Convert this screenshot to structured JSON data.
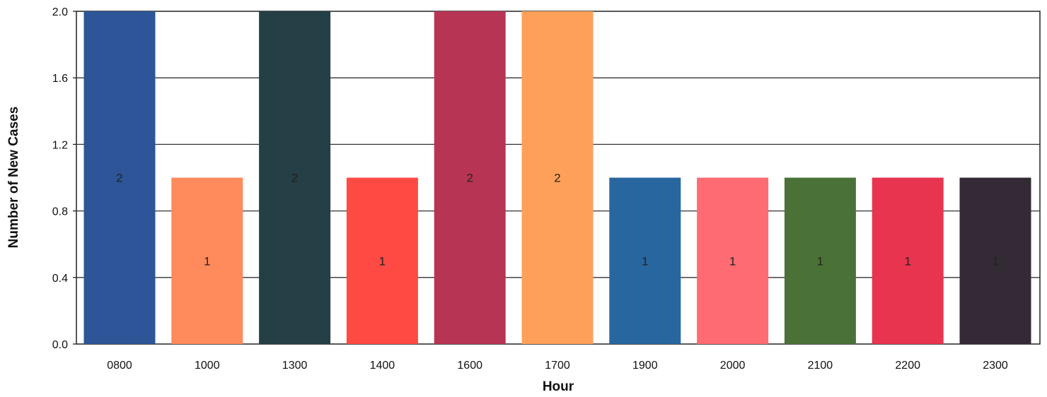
{
  "chart_data": {
    "type": "bar",
    "title": "",
    "xlabel": "Hour",
    "ylabel": "Number of New Cases",
    "categories": [
      "0800",
      "1000",
      "1300",
      "1400",
      "1600",
      "1700",
      "1900",
      "2000",
      "2100",
      "2200",
      "2300"
    ],
    "values": [
      2,
      1,
      2,
      1,
      2,
      2,
      1,
      1,
      1,
      1,
      1
    ],
    "data_labels": [
      "2",
      "1",
      "2",
      "1",
      "2",
      "2",
      "1",
      "1",
      "1",
      "1",
      "1"
    ],
    "colors": [
      "#2d5597",
      "#ff8a5c",
      "#243f45",
      "#ff4a43",
      "#b83455",
      "#ffa05a",
      "#2866a0",
      "#ff6b72",
      "#4b7236",
      "#e8344e",
      "#342a36"
    ],
    "ylim": [
      0,
      2
    ],
    "yticks": [
      "0.0",
      "0.4",
      "0.8",
      "1.2",
      "1.6",
      "2.0"
    ],
    "ytick_values": [
      0,
      0.4,
      0.8,
      1.2,
      1.6,
      2.0
    ],
    "grid": true,
    "legend": "none"
  }
}
